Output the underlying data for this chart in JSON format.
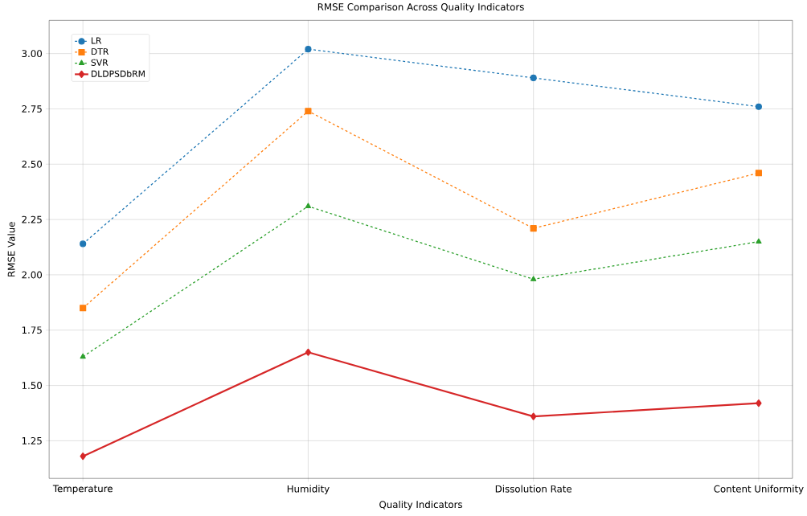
{
  "chart_data": {
    "type": "line",
    "title": "RMSE Comparison Across Quality Indicators",
    "xlabel": "Quality Indicators",
    "ylabel": "RMSE Value",
    "categories": [
      "Temperature",
      "Humidity",
      "Dissolution Rate",
      "Content Uniformity"
    ],
    "series": [
      {
        "name": "LR",
        "color": "#1f77b4",
        "values": [
          2.14,
          3.02,
          2.89,
          2.76
        ],
        "marker": "circle",
        "line_style": "dashed"
      },
      {
        "name": "DTR",
        "color": "#ff7f0e",
        "values": [
          1.85,
          2.74,
          2.21,
          2.46
        ],
        "marker": "square",
        "line_style": "dashed"
      },
      {
        "name": "SVR",
        "color": "#2ca02c",
        "values": [
          1.63,
          2.31,
          1.98,
          2.15
        ],
        "marker": "triangle",
        "line_style": "dashed"
      },
      {
        "name": "DLDPSDbRM",
        "color": "#d62728",
        "values": [
          1.18,
          1.65,
          1.36,
          1.42
        ],
        "marker": "diamond",
        "line_style": "solid"
      }
    ],
    "ylim": [
      1.08,
      3.15
    ],
    "yticks": [
      {
        "value": 1.25,
        "label": "1.25"
      },
      {
        "value": 1.5,
        "label": "1.50"
      },
      {
        "value": 1.75,
        "label": "1.75"
      },
      {
        "value": 2.0,
        "label": "2.00"
      },
      {
        "value": 2.25,
        "label": "2.25"
      },
      {
        "value": 2.5,
        "label": "2.50"
      },
      {
        "value": 2.75,
        "label": "2.75"
      },
      {
        "value": 3.0,
        "label": "3.00"
      }
    ],
    "grid": true,
    "legend": "top left"
  }
}
